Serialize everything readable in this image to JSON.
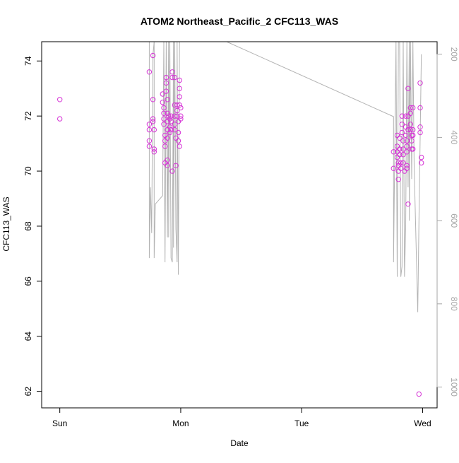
{
  "colors": {
    "marker_stroke": "#d633d6",
    "pressure_line": "#b3b3b3",
    "axis": "#000000",
    "right_axis": "#a6a6a6"
  },
  "chart_data": {
    "type": "scatter",
    "title": "ATOM2 Northeast_Pacific_2 CFC113_WAS",
    "xlabel": "Date",
    "ylabel": "CFC113_WAS",
    "x_unit": "days",
    "x_tick_labels": [
      "Sun",
      "Mon",
      "Tue",
      "Wed"
    ],
    "x_ticks": [
      0,
      1,
      2,
      3
    ],
    "xlim": [
      -0.15,
      3.12
    ],
    "ylim": [
      61.4,
      74.7
    ],
    "y_ticks": [
      62,
      64,
      66,
      68,
      70,
      72,
      74
    ],
    "y2_label": "",
    "y2_ticks": [
      200,
      400,
      600,
      800,
      1000
    ],
    "y2_reversed": true,
    "y2lim": [
      1050,
      170
    ],
    "grid": false,
    "series": [
      {
        "name": "",
        "kind": "points",
        "points": [
          [
            0.0,
            72.6
          ],
          [
            0.0,
            71.9
          ],
          [
            0.74,
            73.6
          ],
          [
            0.74,
            71.7
          ],
          [
            0.74,
            71.5
          ],
          [
            0.74,
            71.1
          ],
          [
            0.74,
            70.9
          ],
          [
            0.77,
            74.2
          ],
          [
            0.77,
            72.6
          ],
          [
            0.77,
            71.9
          ],
          [
            0.77,
            71.8
          ],
          [
            0.78,
            71.5
          ],
          [
            0.78,
            70.8
          ],
          [
            0.78,
            70.7
          ],
          [
            0.85,
            72.8
          ],
          [
            0.85,
            72.5
          ],
          [
            0.86,
            72.3
          ],
          [
            0.86,
            72.1
          ],
          [
            0.86,
            71.9
          ],
          [
            0.86,
            71.7
          ],
          [
            0.87,
            71.3
          ],
          [
            0.87,
            71.1
          ],
          [
            0.87,
            70.9
          ],
          [
            0.87,
            70.3
          ],
          [
            0.88,
            73.4
          ],
          [
            0.88,
            73.2
          ],
          [
            0.88,
            72.9
          ],
          [
            0.89,
            72.6
          ],
          [
            0.89,
            72.1
          ],
          [
            0.89,
            71.8
          ],
          [
            0.89,
            71.5
          ],
          [
            0.89,
            71.2
          ],
          [
            0.89,
            70.4
          ],
          [
            0.89,
            70.2
          ],
          [
            0.9,
            72.0
          ],
          [
            0.91,
            71.9
          ],
          [
            0.91,
            71.6
          ],
          [
            0.91,
            71.4
          ],
          [
            0.92,
            72.0
          ],
          [
            0.92,
            71.8
          ],
          [
            0.92,
            71.5
          ],
          [
            0.93,
            73.6
          ],
          [
            0.93,
            73.4
          ],
          [
            0.93,
            70.0
          ],
          [
            0.95,
            73.4
          ],
          [
            0.95,
            72.4
          ],
          [
            0.95,
            72.0
          ],
          [
            0.95,
            71.7
          ],
          [
            0.95,
            71.5
          ],
          [
            0.96,
            71.2
          ],
          [
            0.96,
            70.2
          ],
          [
            0.97,
            72.4
          ],
          [
            0.97,
            72.2
          ],
          [
            0.97,
            72.0
          ],
          [
            0.98,
            71.8
          ],
          [
            0.98,
            71.4
          ],
          [
            0.98,
            71.1
          ],
          [
            0.99,
            73.3
          ],
          [
            0.99,
            73.0
          ],
          [
            0.99,
            72.7
          ],
          [
            0.99,
            72.4
          ],
          [
            1.0,
            72.3
          ],
          [
            1.0,
            72.0
          ],
          [
            1.0,
            71.9
          ],
          [
            0.99,
            70.9
          ],
          [
            2.76,
            70.1
          ],
          [
            2.76,
            70.7
          ],
          [
            2.79,
            71.3
          ],
          [
            2.79,
            70.9
          ],
          [
            2.79,
            70.7
          ],
          [
            2.79,
            70.5
          ],
          [
            2.8,
            70.3
          ],
          [
            2.8,
            70.2
          ],
          [
            2.8,
            70.0
          ],
          [
            2.8,
            69.7
          ],
          [
            2.81,
            71.2
          ],
          [
            2.81,
            70.8
          ],
          [
            2.81,
            70.6
          ],
          [
            2.82,
            70.3
          ],
          [
            2.82,
            70.1
          ],
          [
            2.83,
            72.0
          ],
          [
            2.83,
            71.7
          ],
          [
            2.83,
            71.4
          ],
          [
            2.84,
            71.1
          ],
          [
            2.84,
            70.8
          ],
          [
            2.84,
            70.6
          ],
          [
            2.84,
            70.3
          ],
          [
            2.85,
            70.0
          ],
          [
            2.86,
            72.0
          ],
          [
            2.86,
            71.6
          ],
          [
            2.86,
            71.3
          ],
          [
            2.87,
            71.1
          ],
          [
            2.87,
            70.9
          ],
          [
            2.87,
            70.7
          ],
          [
            2.87,
            70.2
          ],
          [
            2.87,
            70.1
          ],
          [
            2.88,
            73.0
          ],
          [
            2.88,
            72.0
          ],
          [
            2.88,
            71.5
          ],
          [
            2.88,
            68.8
          ],
          [
            2.9,
            72.3
          ],
          [
            2.9,
            72.1
          ],
          [
            2.9,
            71.7
          ],
          [
            2.9,
            71.5
          ],
          [
            2.91,
            71.3
          ],
          [
            2.91,
            71.1
          ],
          [
            2.91,
            70.8
          ],
          [
            2.92,
            72.3
          ],
          [
            2.92,
            71.5
          ],
          [
            2.92,
            71.3
          ],
          [
            2.92,
            70.8
          ],
          [
            2.98,
            73.2
          ],
          [
            2.98,
            72.3
          ],
          [
            2.98,
            71.6
          ],
          [
            2.98,
            71.4
          ],
          [
            2.99,
            70.5
          ],
          [
            2.99,
            70.3
          ],
          [
            2.97,
            61.9
          ]
        ]
      },
      {
        "name": "",
        "kind": "line",
        "axis": "y2",
        "points": [
          [
            0.74,
            170
          ],
          [
            0.74,
            690
          ],
          [
            0.75,
            520
          ],
          [
            0.76,
            630
          ],
          [
            0.77,
            200
          ],
          [
            0.78,
            170
          ],
          [
            0.78,
            690
          ],
          [
            0.79,
            560
          ],
          [
            0.85,
            540
          ],
          [
            0.86,
            170
          ],
          [
            0.87,
            700
          ],
          [
            0.88,
            170
          ],
          [
            0.89,
            640
          ],
          [
            0.9,
            170
          ],
          [
            0.9,
            640
          ],
          [
            0.91,
            170
          ],
          [
            0.92,
            690
          ],
          [
            0.93,
            700
          ],
          [
            0.94,
            170
          ],
          [
            0.94,
            665
          ],
          [
            0.95,
            170
          ],
          [
            0.96,
            620
          ],
          [
            0.97,
            700
          ],
          [
            0.97,
            170
          ],
          [
            0.98,
            730
          ],
          [
            0.99,
            170
          ],
          [
            1.0,
            170
          ],
          [
            1.38,
            170
          ],
          [
            2.76,
            350
          ],
          [
            2.76,
            700
          ],
          [
            2.78,
            170
          ],
          [
            2.79,
            735
          ],
          [
            2.8,
            170
          ],
          [
            2.81,
            170
          ],
          [
            2.82,
            735
          ],
          [
            2.83,
            710
          ],
          [
            2.84,
            170
          ],
          [
            2.85,
            735
          ],
          [
            2.86,
            620
          ],
          [
            2.87,
            170
          ],
          [
            2.88,
            520
          ],
          [
            2.89,
            170
          ],
          [
            2.89,
            600
          ],
          [
            2.9,
            170
          ],
          [
            2.91,
            500
          ],
          [
            2.92,
            170
          ],
          [
            2.93,
            470
          ],
          [
            2.96,
            820
          ],
          [
            2.97,
            600
          ],
          [
            2.99,
            200
          ]
        ]
      }
    ]
  }
}
